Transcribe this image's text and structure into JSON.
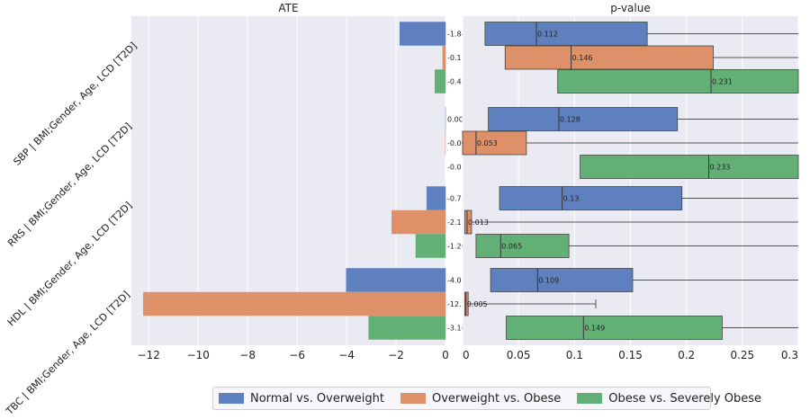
{
  "chart_data": {
    "type": "bar",
    "panels": {
      "left": {
        "title": "ATE",
        "xlim": [
          -12.7,
          0.0
        ],
        "xticks": [
          -12,
          -10,
          -8,
          -6,
          -4,
          -2,
          0
        ],
        "xtick_labels": [
          "−12",
          "−10",
          "−8",
          "−6",
          "−4",
          "−2",
          "0"
        ]
      },
      "right": {
        "title": "p-value",
        "xlim": [
          0.0,
          0.3
        ],
        "xticks": [
          0,
          0.05,
          0.1,
          0.15,
          0.2,
          0.25,
          0.3
        ],
        "xtick_labels": [
          "0",
          "0.05",
          "0.1",
          "0.15",
          "0.2",
          "0.25",
          "0.3"
        ]
      }
    },
    "groups": [
      "SBP | BMI;Gender, Age, LCD [T2D]",
      "RRS | BMI;Gender, Age, LCD [T2D]",
      "HDL | BMI;Gender, Age, LCD [T2D]",
      "TBC | BMI;Gender, Age, LCD [T2D]"
    ],
    "series": [
      {
        "name": "Normal vs. Overweight",
        "color": "#5f80be"
      },
      {
        "name": "Overweight vs. Obese",
        "color": "#de9168"
      },
      {
        "name": "Obese vs. Severely Obese",
        "color": "#63b077"
      }
    ],
    "ate": [
      [
        -1.846,
        -0.112,
        -0.43
      ],
      [
        0.002,
        -0.003,
        -0.0
      ],
      [
        -0.758,
        -2.172,
        -1.201
      ],
      [
        -4.012,
        -12.217,
        -3.107
      ]
    ],
    "ate_labels": [
      [
        "-1.846",
        "-0.112",
        "-0.43"
      ],
      [
        "0.002",
        "-0.003",
        "-0.0"
      ],
      [
        "-0.758",
        "-2.172",
        "-1.201"
      ],
      [
        "-4.012",
        "-12.217",
        "-3.107"
      ]
    ],
    "pvalue_box": [
      [
        {
          "q1": 0.02,
          "median": 0.066,
          "q3": 0.165,
          "whisker_high": 0.3
        },
        {
          "q1": 0.038,
          "median": 0.097,
          "q3": 0.224,
          "whisker_high": 0.3
        },
        {
          "q1": 0.085,
          "median": 0.222,
          "q3": 0.3,
          "whisker_high": 0.3
        }
      ],
      [
        {
          "q1": 0.023,
          "median": 0.086,
          "q3": 0.192,
          "whisker_high": 0.3
        },
        {
          "q1": 0.0,
          "median": 0.012,
          "q3": 0.057,
          "whisker_high": 0.3
        },
        {
          "q1": 0.105,
          "median": 0.22,
          "q3": 0.3,
          "whisker_high": 0.3
        }
      ],
      [
        {
          "q1": 0.033,
          "median": 0.089,
          "q3": 0.196,
          "whisker_high": 0.3
        },
        {
          "q1": 0.002,
          "median": 0.004,
          "q3": 0.008,
          "whisker_high": 0.3
        },
        {
          "q1": 0.012,
          "median": 0.034,
          "q3": 0.095,
          "whisker_high": 0.3
        }
      ],
      [
        {
          "q1": 0.025,
          "median": 0.067,
          "q3": 0.152,
          "whisker_high": 0.3
        },
        {
          "q1": 0.002,
          "median": 0.003,
          "q3": 0.005,
          "whisker_high": 0.119
        },
        {
          "q1": 0.039,
          "median": 0.108,
          "q3": 0.232,
          "whisker_high": 0.3
        }
      ]
    ],
    "pvalue_labels": [
      [
        "0.112",
        "0.146",
        "0.231"
      ],
      [
        "0.128",
        "0.053",
        "0.233"
      ],
      [
        "0.13",
        "0.013",
        "0.065"
      ],
      [
        "0.109",
        "0.005",
        "0.149"
      ]
    ],
    "grid": true,
    "legend_position": "bottom-center"
  }
}
